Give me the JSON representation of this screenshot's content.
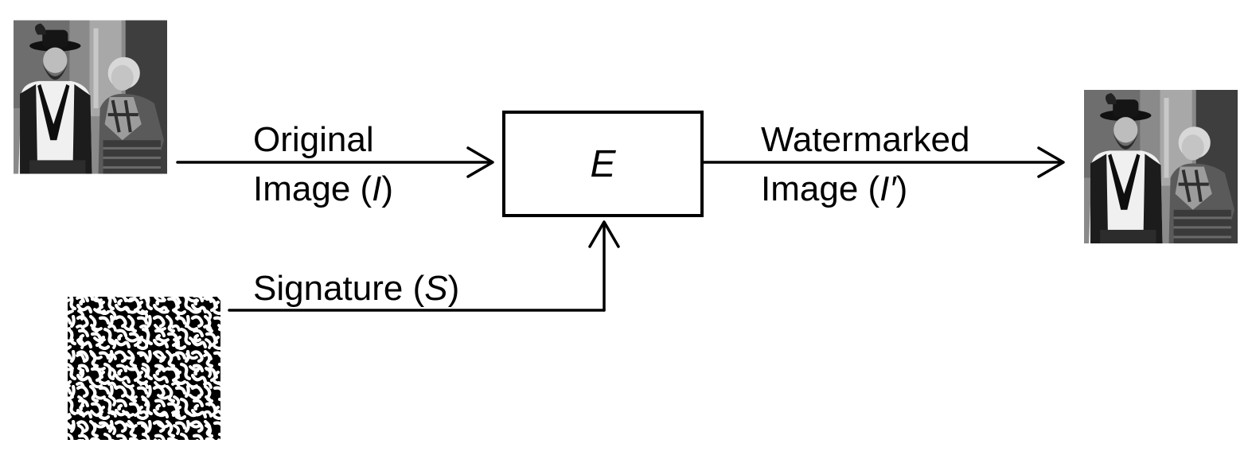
{
  "encoder": {
    "symbol": "E"
  },
  "inputs": {
    "original": {
      "line1": "Original",
      "line2_prefix": "Image (",
      "symbol": "I",
      "line2_suffix": ")"
    },
    "signature": {
      "prefix": "Signature (",
      "symbol": "S",
      "suffix": ")"
    }
  },
  "output": {
    "line1": "Watermarked",
    "line2_prefix": "Image (",
    "symbol": "I′",
    "line2_suffix": ")"
  },
  "colors": {
    "ink": "#000000",
    "background": "#ffffff"
  }
}
